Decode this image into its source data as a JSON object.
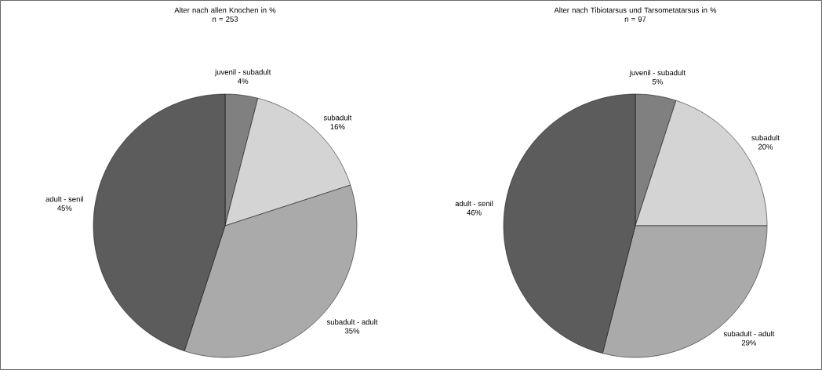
{
  "chart_data": [
    {
      "type": "pie",
      "title": "Alter nach allen Knochen in %",
      "subtitle": "n = 253",
      "categories": [
        "juvenil - subadult",
        "subadult",
        "subadult - adult",
        "adult - senil"
      ],
      "values": [
        4,
        16,
        35,
        45
      ],
      "value_labels": [
        "4%",
        "16%",
        "35%",
        "45%"
      ],
      "colors": [
        "#808080",
        "#d4d4d4",
        "#aaaaaa",
        "#5c5c5c"
      ]
    },
    {
      "type": "pie",
      "title": "Alter nach Tibiotarsus und Tarsometatarsus in %",
      "subtitle": "n = 97",
      "categories": [
        "juvenil - subadult",
        "subadult",
        "subadult - adult",
        "adult - senil"
      ],
      "values": [
        5,
        20,
        29,
        46
      ],
      "value_labels": [
        "5%",
        "20%",
        "29%",
        "46%"
      ],
      "colors": [
        "#808080",
        "#d4d4d4",
        "#aaaaaa",
        "#5c5c5c"
      ]
    }
  ]
}
